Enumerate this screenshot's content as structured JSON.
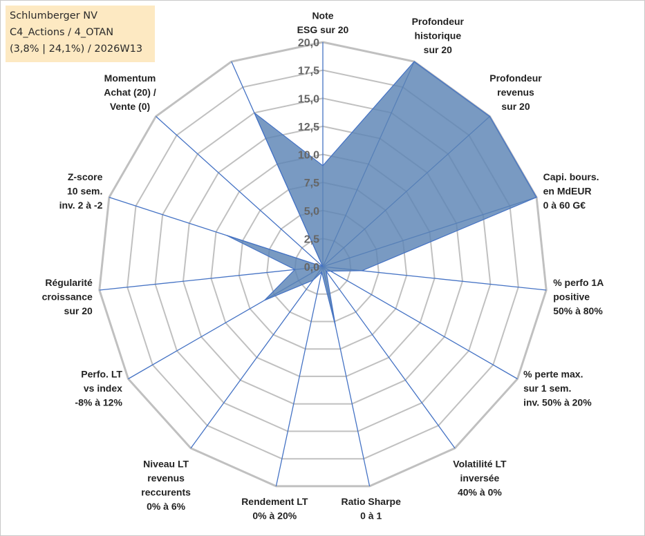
{
  "title_box": {
    "line1": "Schlumberger NV",
    "line2": "C4_Actions / 4_OTAN",
    "line3": "(3,8% | 24,1%) / 2026W13"
  },
  "colors": {
    "fill": "#5b84b5",
    "stroke": "#4472c4",
    "grid": "#c0c0c0",
    "title_bg": "#fde9c2"
  },
  "chart_data": {
    "type": "radar",
    "rmin": 0,
    "rmax": 20,
    "tick_labels": [
      "0,0",
      "2,5",
      "5,0",
      "7,5",
      "10,0",
      "12,5",
      "15,0",
      "17,5",
      "20,0"
    ],
    "axes": [
      {
        "label": [
          "Note",
          "ESG sur 20"
        ],
        "value": 9
      },
      {
        "label": [
          "Profondeur",
          "historique",
          "sur 20"
        ],
        "value": 20
      },
      {
        "label": [
          "Profondeur",
          "revenus",
          "sur 20"
        ],
        "value": 20
      },
      {
        "label": [
          "Capi. bours.",
          "en MdEUR",
          "0 à 60 G€"
        ],
        "value": 20
      },
      {
        "label": [
          "% perfo 1A",
          "positive",
          "50% à 80%"
        ],
        "value": 3.5
      },
      {
        "label": [
          "% perte max.",
          "sur 1 sem.",
          "inv. 50% à 20%"
        ],
        "value": 0.8
      },
      {
        "label": [
          "Volatilité LT",
          "inversée",
          "40% à 0%"
        ],
        "value": 0.5
      },
      {
        "label": [
          "Ratio Sharpe",
          "0 à 1"
        ],
        "value": 5.5
      },
      {
        "label": [
          "Rendement LT",
          "0% à 20%"
        ],
        "value": 0.5
      },
      {
        "label": [
          "Niveau LT",
          "revenus",
          "reccurents",
          "0% à 6%"
        ],
        "value": 1.5
      },
      {
        "label": [
          "Perfo. LT",
          "vs index",
          "-8% à 12%"
        ],
        "value": 6
      },
      {
        "label": [
          "Régularité",
          "croissance",
          "sur 20"
        ],
        "value": 2.5
      },
      {
        "label": [
          "Z-score",
          "10 sem.",
          "inv. 2 à -2"
        ],
        "value": 9
      },
      {
        "label": [
          "Momentum",
          "Achat (20) /",
          "Vente (0)"
        ],
        "value": 0
      },
      {
        "label": [],
        "value": 15
      }
    ]
  }
}
